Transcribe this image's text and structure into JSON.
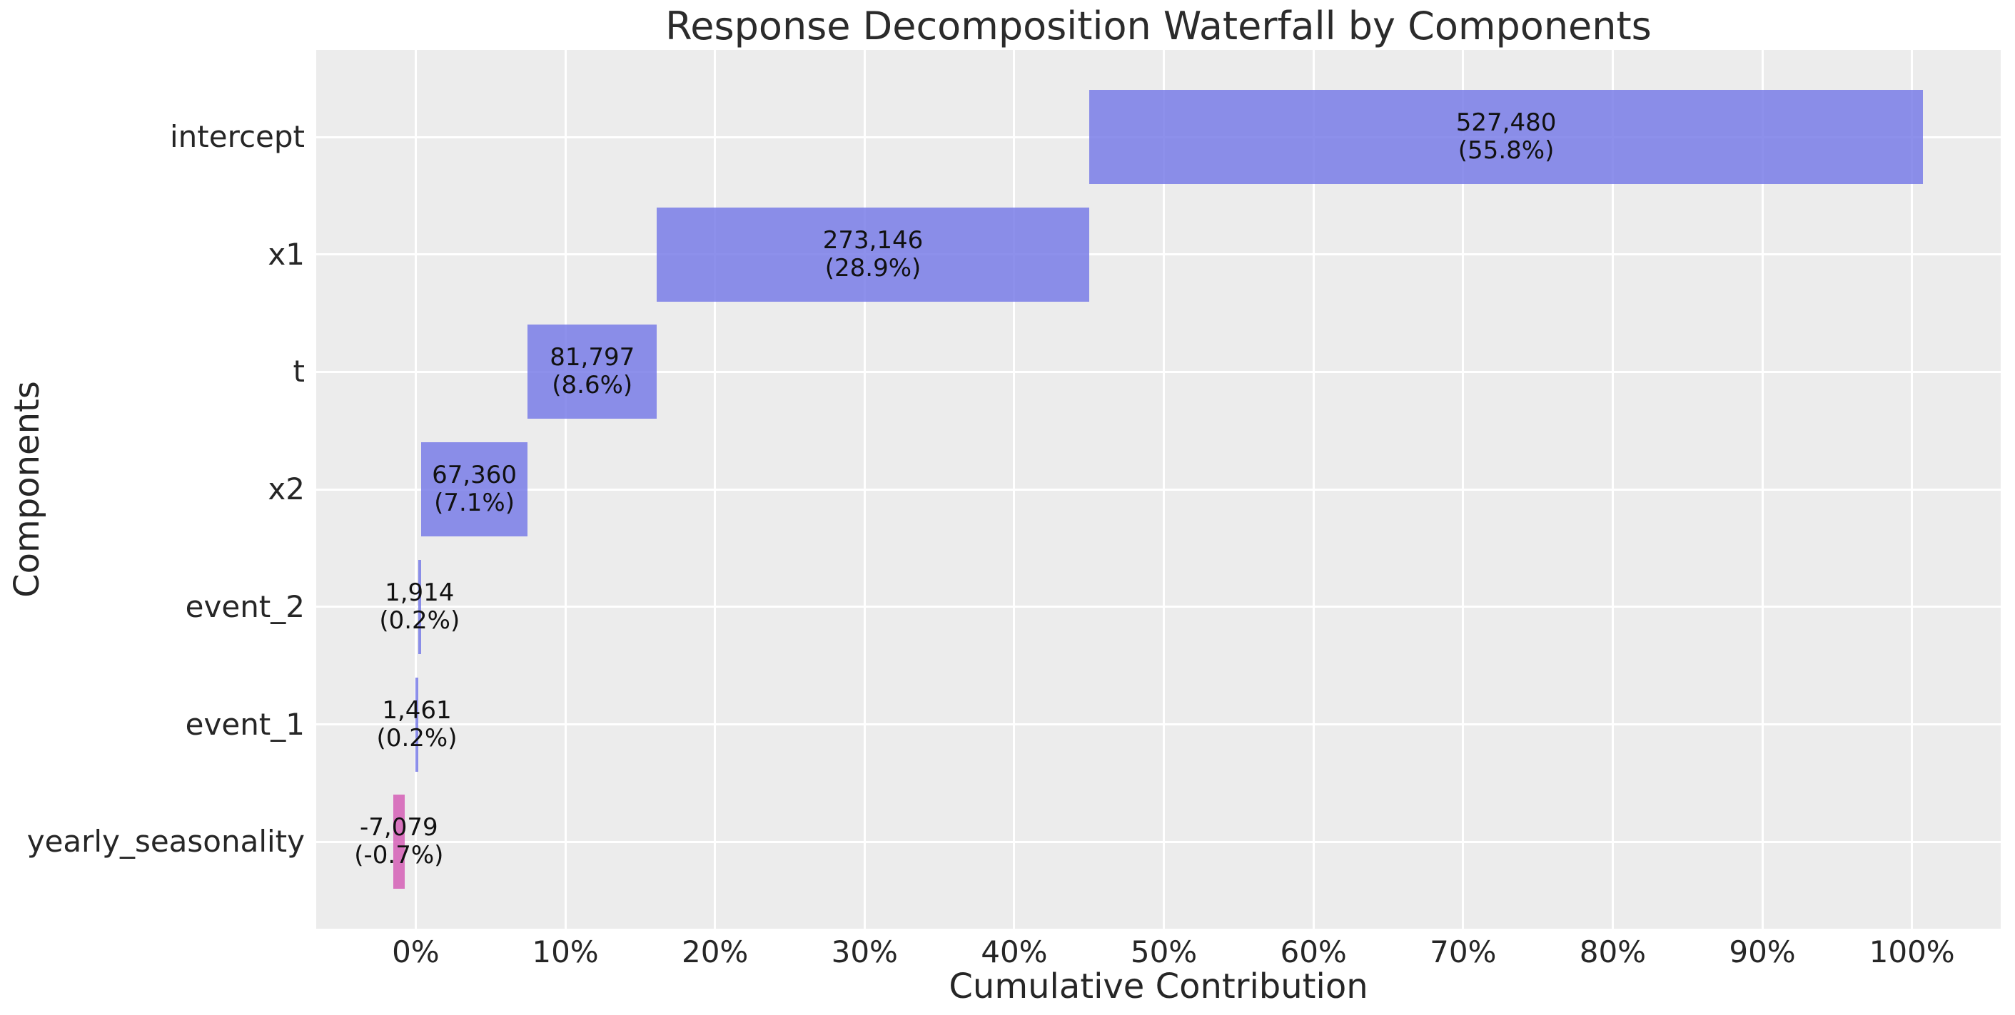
{
  "title": "Response Decomposition Waterfall by Components",
  "chart_data": {
    "type": "bar",
    "subtype": "horizontal_waterfall",
    "title": "Response Decomposition Waterfall by Components",
    "xlabel": "Cumulative Contribution",
    "ylabel": "Components",
    "grid": true,
    "legend_position": "none",
    "categories": [
      "intercept",
      "x1",
      "t",
      "x2",
      "event_2",
      "event_1",
      "yearly_seasonality"
    ],
    "values": [
      527480,
      273146,
      81797,
      67360,
      1914,
      1461,
      -7079
    ],
    "percent_of_total": [
      55.8,
      28.9,
      8.6,
      7.1,
      0.2,
      0.2,
      -0.7
    ],
    "xlim_pct": [
      -6.65,
      105.93
    ],
    "x_ticks": [
      {
        "value": 0,
        "label": "0%"
      },
      {
        "value": 10,
        "label": "10%"
      },
      {
        "value": 20,
        "label": "20%"
      },
      {
        "value": 30,
        "label": "30%"
      },
      {
        "value": 40,
        "label": "40%"
      },
      {
        "value": 50,
        "label": "50%"
      },
      {
        "value": 60,
        "label": "60%"
      },
      {
        "value": 70,
        "label": "70%"
      },
      {
        "value": 80,
        "label": "80%"
      },
      {
        "value": 90,
        "label": "90%"
      },
      {
        "value": 100,
        "label": "100%"
      }
    ],
    "bars": [
      {
        "category": "intercept",
        "start_pct": 45.0,
        "end_pct": 100.75,
        "value_label": "527,480",
        "pct_label": "(55.8%)",
        "sign": "positive"
      },
      {
        "category": "x1",
        "start_pct": 16.12,
        "end_pct": 45.0,
        "value_label": "273,146",
        "pct_label": "(28.9%)",
        "sign": "positive"
      },
      {
        "category": "t",
        "start_pct": 7.48,
        "end_pct": 16.12,
        "value_label": "81,797",
        "pct_label": "(8.6%)",
        "sign": "positive"
      },
      {
        "category": "x2",
        "start_pct": 0.36,
        "end_pct": 7.48,
        "value_label": "67,360",
        "pct_label": "(7.1%)",
        "sign": "positive"
      },
      {
        "category": "event_2",
        "start_pct": 0.154,
        "end_pct": 0.36,
        "value_label": "1,914",
        "pct_label": "(0.2%)",
        "sign": "positive"
      },
      {
        "category": "event_1",
        "start_pct": 0.0,
        "end_pct": 0.154,
        "value_label": "1,461",
        "pct_label": "(0.2%)",
        "sign": "positive"
      },
      {
        "category": "yearly_seasonality",
        "start_pct": -1.5,
        "end_pct": -0.75,
        "value_label": "-7,079",
        "pct_label": "(-0.7%)",
        "sign": "negative"
      }
    ],
    "colors": {
      "positive_bar": "#797ce8",
      "negative_bar": "#d55fb6",
      "bar_alpha": 0.85,
      "plot_background": "#ececec",
      "gridline": "#ffffff",
      "text": "#262626"
    }
  }
}
